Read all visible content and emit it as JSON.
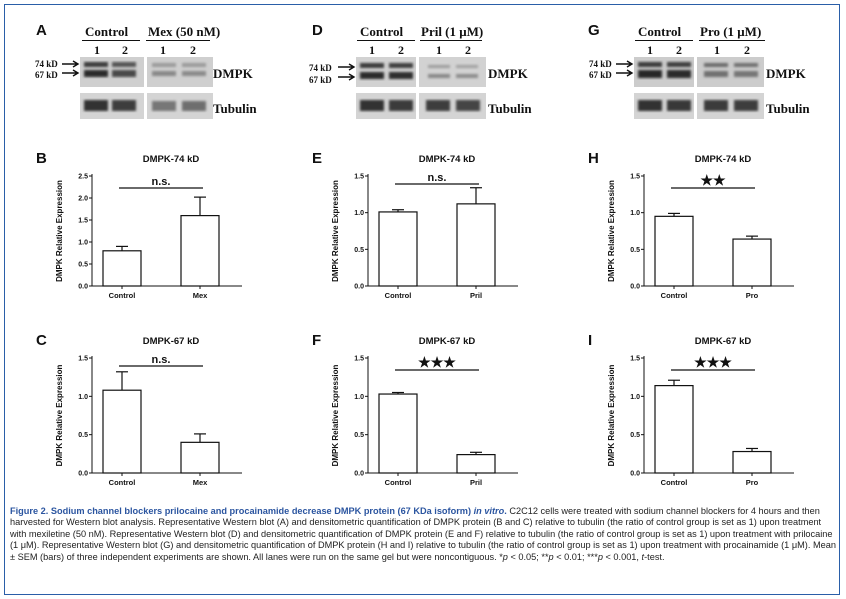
{
  "blots": [
    {
      "letter": "A",
      "control": "Control",
      "treatment": "Mex (50 nM)",
      "lane1": "1",
      "lane2": "2",
      "kd74": "74 kD",
      "kd67": "67 kD",
      "protein": "DMPK",
      "loading": "Tubulin"
    },
    {
      "letter": "D",
      "control": "Control",
      "treatment": "Pril (1 μM)",
      "lane1": "1",
      "lane2": "2",
      "kd74": "74 kD",
      "kd67": "67 kD",
      "protein": "DMPK",
      "loading": "Tubulin"
    },
    {
      "letter": "G",
      "control": "Control",
      "treatment": "Pro (1 μM)",
      "lane1": "1",
      "lane2": "2",
      "kd74": "74 kD",
      "kd67": "67 kD",
      "protein": "DMPK",
      "loading": "Tubulin"
    }
  ],
  "chart_data": [
    {
      "letter": "B",
      "type": "bar",
      "title": "DMPK-74 kD",
      "ylabel": "DMPK Relative Expression",
      "categories": [
        "Control",
        "Mex"
      ],
      "values": [
        0.8,
        1.6
      ],
      "errors": [
        0.1,
        0.42
      ],
      "ylim": [
        0,
        2.5
      ],
      "yticks": [
        "0.0",
        "0.5",
        "1.0",
        "1.5",
        "2.0",
        "2.5"
      ],
      "significance": "n.s."
    },
    {
      "letter": "C",
      "type": "bar",
      "title": "DMPK-67 kD",
      "ylabel": "DMPK Relative Expression",
      "categories": [
        "Control",
        "Mex"
      ],
      "values": [
        1.08,
        0.4
      ],
      "errors": [
        0.24,
        0.11
      ],
      "ylim": [
        0,
        1.5
      ],
      "yticks": [
        "0.0",
        "0.5",
        "1.0",
        "1.5"
      ],
      "significance": "n.s."
    },
    {
      "letter": "E",
      "type": "bar",
      "title": "DMPK-74 kD",
      "ylabel": "DMPK Relative Expression",
      "categories": [
        "Control",
        "Pril"
      ],
      "values": [
        1.01,
        1.12
      ],
      "errors": [
        0.03,
        0.22
      ],
      "ylim": [
        0,
        1.5
      ],
      "yticks": [
        "0.0",
        "0.5",
        "1.0",
        "1.5"
      ],
      "significance": "n.s."
    },
    {
      "letter": "F",
      "type": "bar",
      "title": "DMPK-67 kD",
      "ylabel": "DMPK Relative Expression",
      "categories": [
        "Control",
        "Pril"
      ],
      "values": [
        1.03,
        0.24
      ],
      "errors": [
        0.02,
        0.03
      ],
      "ylim": [
        0,
        1.5
      ],
      "yticks": [
        "0.0",
        "0.5",
        "1.0",
        "1.5"
      ],
      "significance": "★★★"
    },
    {
      "letter": "H",
      "type": "bar",
      "title": "DMPK-74 kD",
      "ylabel": "DMPK Relative Expression",
      "categories": [
        "Control",
        "Pro"
      ],
      "values": [
        0.95,
        0.64
      ],
      "errors": [
        0.04,
        0.04
      ],
      "ylim": [
        0,
        1.5
      ],
      "yticks": [
        "0.0",
        "0.5",
        "1.0",
        "1.5"
      ],
      "significance": "★★"
    },
    {
      "letter": "I",
      "type": "bar",
      "title": "DMPK-67 kD",
      "ylabel": "DMPK Relative Expression",
      "categories": [
        "Control",
        "Pro"
      ],
      "values": [
        1.14,
        0.28
      ],
      "errors": [
        0.07,
        0.04
      ],
      "ylim": [
        0,
        1.5
      ],
      "yticks": [
        "0.0",
        "0.5",
        "1.0",
        "1.5"
      ],
      "significance": "★★★"
    }
  ],
  "caption": {
    "title": "Figure 2. Sodium channel blockers prilocaine and procainamide decrease DMPK protein (67 KDa isoform) ",
    "title_italic": "in vitro",
    "title_end": ".",
    "body1": " C2C12 cells were treated with sodium channel blockers for 4 hours and then harvested for Western blot analysis. Representative Western blot (A) and densitometric quantification of DMPK protein (B and C) relative to tubulin (the ratio of control group is set as 1) upon treatment with mexiletine (50 nM). Representative Western blot (D) and densitometric quantification of DMPK protein (E and F) relative to tubulin (the ratio of control group is set as 1) upon treatment with prilocaine (1 μM). Representative Western blot (G) and densitometric quantification of DMPK protein (H and I) relative to tubulin (the ratio of control group is set as 1) upon treatment with procainamide (1 μM). Mean ± SEM (bars) of three independent experiments are shown. All lanes were run on the same gel but were noncontiguous. *",
    "p1": "p",
    "body2": " < 0.05; **",
    "p2": "p",
    "body3": " < 0.01; ***",
    "p3": "p",
    "body4": " < 0.001, ",
    "ttest": "t",
    "body5": "-test."
  }
}
